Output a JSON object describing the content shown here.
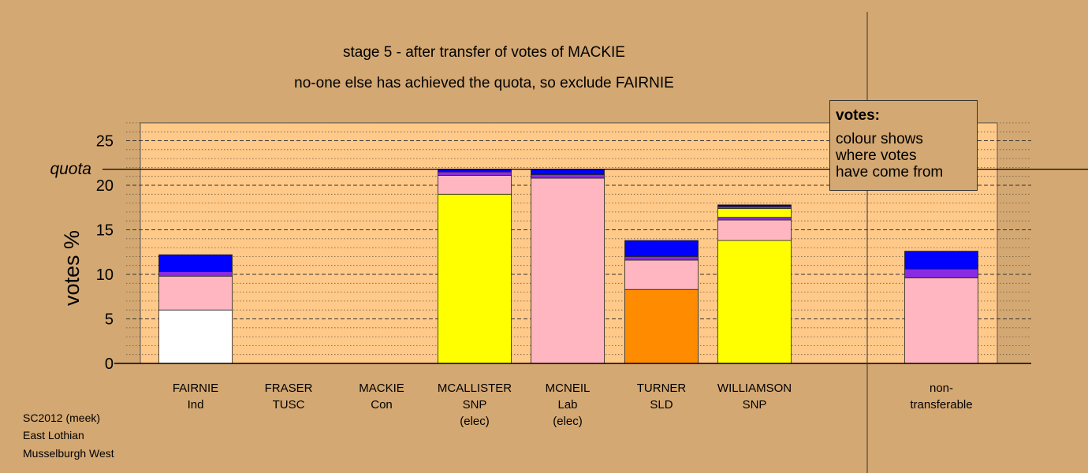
{
  "chart_data": {
    "type": "bar",
    "stacked": true,
    "title": "stage 5 - after transfer of votes of MACKIE",
    "subtitle": "no-one else has achieved the quota, so exclude FAIRNIE",
    "ylabel": "votes %",
    "ylim": [
      0,
      27
    ],
    "yticks": [
      "0",
      "5",
      "10",
      "15",
      "20",
      "25"
    ],
    "quota_label": "quota",
    "quota": 21.8,
    "legend_placement": "top-right",
    "colors": {
      "white": "#ffffff",
      "pink": "#ffb6c1",
      "purple": "#8a2be2",
      "blue": "#0000ff",
      "yellow": "#ffff00",
      "orange": "#ff8c00",
      "navy": "#000066",
      "plot_bg": "#ffc98a",
      "page_bg": "#d4a872"
    },
    "categories": [
      {
        "name": "FAIRNIE",
        "party": "Ind",
        "note": "",
        "segments": [
          {
            "color": "white",
            "value": 6.0
          },
          {
            "color": "pink",
            "value": 3.8
          },
          {
            "color": "purple",
            "value": 0.5
          },
          {
            "color": "blue",
            "value": 1.9
          }
        ]
      },
      {
        "name": "FRASER",
        "party": "TUSC",
        "note": "",
        "segments": []
      },
      {
        "name": "MACKIE",
        "party": "Con",
        "note": "",
        "segments": []
      },
      {
        "name": "MCALLISTER",
        "party": "SNP",
        "note": "(elec)",
        "segments": [
          {
            "color": "yellow",
            "value": 19.0
          },
          {
            "color": "pink",
            "value": 2.1
          },
          {
            "color": "purple",
            "value": 0.4
          },
          {
            "color": "blue",
            "value": 0.3
          }
        ]
      },
      {
        "name": "MCNEIL",
        "party": "Lab",
        "note": "(elec)",
        "segments": [
          {
            "color": "pink",
            "value": 20.8
          },
          {
            "color": "purple",
            "value": 0.4
          },
          {
            "color": "blue",
            "value": 0.6
          }
        ]
      },
      {
        "name": "TURNER",
        "party": "SLD",
        "note": "",
        "segments": [
          {
            "color": "orange",
            "value": 8.3
          },
          {
            "color": "pink",
            "value": 3.3
          },
          {
            "color": "purple",
            "value": 0.4
          },
          {
            "color": "blue",
            "value": 1.8
          }
        ]
      },
      {
        "name": "WILLIAMSON",
        "party": "SNP",
        "note": "",
        "segments": [
          {
            "color": "pink",
            "value": 0.0
          },
          {
            "color": "yellow",
            "value": 13.8
          },
          {
            "color": "pink",
            "value": 2.3
          },
          {
            "color": "purple",
            "value": 0.3
          },
          {
            "color": "yellow",
            "value": 1.0
          },
          {
            "color": "purple",
            "value": 0.2
          },
          {
            "color": "navy",
            "value": 0.2
          }
        ]
      },
      {
        "name": "non-",
        "party": "transferable",
        "note": "",
        "segments": [
          {
            "color": "pink",
            "value": 9.6
          },
          {
            "color": "purple",
            "value": 1.0
          },
          {
            "color": "blue",
            "value": 2.0
          }
        ]
      }
    ]
  },
  "legend": {
    "title": "votes:",
    "lines": [
      "colour shows",
      "where votes",
      "have come from"
    ]
  },
  "source": {
    "lines": [
      "SC2012 (meek)",
      "East Lothian",
      "Musselburgh West"
    ]
  }
}
